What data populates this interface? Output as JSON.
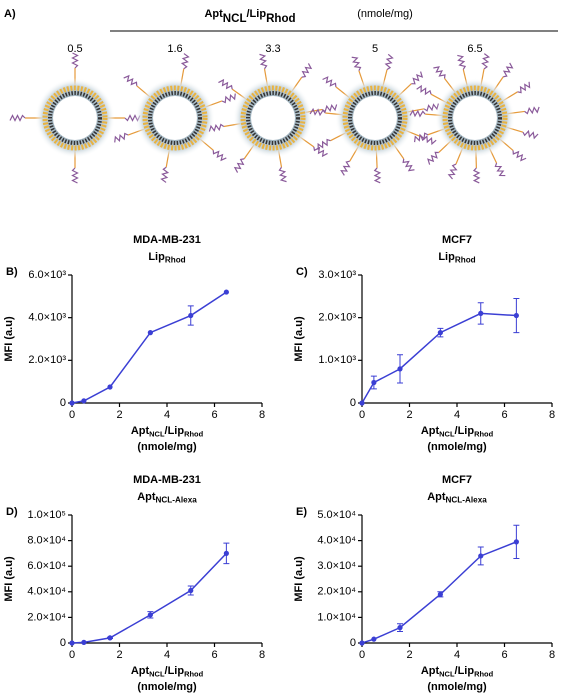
{
  "panel_a": {
    "letter": "A)",
    "header": [
      "Apt",
      "NCL",
      "/Lip",
      "Rhod"
    ],
    "header_unit": "(nmole/mg)",
    "ratios": [
      "0.5",
      "1.6",
      "3.3",
      "5",
      "6.5"
    ]
  },
  "chart_data": [
    {
      "type": "line",
      "panel": "B)",
      "title": "MDA-MB-231",
      "subtitle": [
        "Lip",
        "Rhod"
      ],
      "xlabel": [
        "Apt",
        "NCL",
        "/Lip",
        "Rhod"
      ],
      "xlabel_unit": "(nmole/mg)",
      "ylabel": "MFI (a.u)",
      "x": [
        0,
        0.5,
        1.6,
        3.3,
        5,
        6.5
      ],
      "series": [
        {
          "color": "#3b3fd4",
          "values": [
            0,
            100,
            750,
            3300,
            4100,
            5200
          ],
          "errors": [
            0,
            0,
            0,
            0,
            450,
            0
          ]
        }
      ],
      "xlim": [
        0,
        8
      ],
      "xticks": [
        0,
        2,
        4,
        6,
        8
      ],
      "ylim": [
        0,
        6000
      ],
      "yticks": [
        0,
        {
          "value": 2000,
          "label": "2.0×10³"
        },
        {
          "value": 4000,
          "label": "4.0×10³"
        },
        {
          "value": 6000,
          "label": "6.0×10³"
        }
      ]
    },
    {
      "type": "line",
      "panel": "C)",
      "title": "MCF7",
      "subtitle": [
        "Lip",
        "Rhod"
      ],
      "xlabel": [
        "Apt",
        "NCL",
        "/Lip",
        "Rhod"
      ],
      "xlabel_unit": "(nmole/mg)",
      "ylabel": "MFI (a.u)",
      "x": [
        0,
        0.5,
        1.6,
        3.3,
        5,
        6.5
      ],
      "series": [
        {
          "color": "#3b3fd4",
          "values": [
            0,
            480,
            800,
            1650,
            2100,
            2050
          ],
          "errors": [
            0,
            150,
            330,
            100,
            250,
            400
          ]
        }
      ],
      "xlim": [
        0,
        8
      ],
      "xticks": [
        0,
        2,
        4,
        6,
        8
      ],
      "ylim": [
        0,
        3000
      ],
      "yticks": [
        0,
        {
          "value": 1000,
          "label": "1.0×10³"
        },
        {
          "value": 2000,
          "label": "2.0×10³"
        },
        {
          "value": 3000,
          "label": "3.0×10³"
        }
      ]
    },
    {
      "type": "line",
      "panel": "D)",
      "title": "MDA-MB-231",
      "subtitle": [
        "Apt",
        "NCL-Alexa"
      ],
      "xlabel": [
        "Apt",
        "NCL",
        "/Lip",
        "Rhod"
      ],
      "xlabel_unit": "(nmole/mg)",
      "ylabel": "MFI (a.u)",
      "x": [
        0,
        0.5,
        1.6,
        3.3,
        5,
        6.5
      ],
      "series": [
        {
          "color": "#3b3fd4",
          "values": [
            0,
            500,
            4000,
            22000,
            41000,
            70000
          ],
          "errors": [
            0,
            0,
            500,
            2500,
            3500,
            8000
          ]
        }
      ],
      "xlim": [
        0,
        8
      ],
      "xticks": [
        0,
        2,
        4,
        6,
        8
      ],
      "ylim": [
        0,
        100000
      ],
      "yticks": [
        0,
        {
          "value": 20000,
          "label": "2.0×10⁴"
        },
        {
          "value": 40000,
          "label": "4.0×10⁴"
        },
        {
          "value": 60000,
          "label": "6.0×10⁴"
        },
        {
          "value": 80000,
          "label": "8.0×10⁴"
        },
        {
          "value": 100000,
          "label": "1.0×10⁵"
        }
      ]
    },
    {
      "type": "line",
      "panel": "E)",
      "title": "MCF7",
      "subtitle": [
        "Apt",
        "NCL-Alexa"
      ],
      "xlabel": [
        "Apt",
        "NCL",
        "/Lip",
        "Rhod"
      ],
      "xlabel_unit": "(nmole/mg)",
      "ylabel": "MFI (a.u)",
      "x": [
        0,
        0.5,
        1.6,
        3.3,
        5,
        6.5
      ],
      "series": [
        {
          "color": "#3b3fd4",
          "values": [
            0,
            1500,
            6000,
            19000,
            34000,
            39500
          ],
          "errors": [
            0,
            0,
            1500,
            1000,
            3500,
            6500
          ]
        }
      ],
      "xlim": [
        0,
        8
      ],
      "xticks": [
        0,
        2,
        4,
        6,
        8
      ],
      "ylim": [
        0,
        50000
      ],
      "yticks": [
        0,
        {
          "value": 10000,
          "label": "1.0×10⁴"
        },
        {
          "value": 20000,
          "label": "2.0×10⁴"
        },
        {
          "value": 30000,
          "label": "3.0×10⁴"
        },
        {
          "value": 40000,
          "label": "4.0×10⁴"
        },
        {
          "value": 50000,
          "label": "5.0×10⁴"
        }
      ]
    }
  ]
}
